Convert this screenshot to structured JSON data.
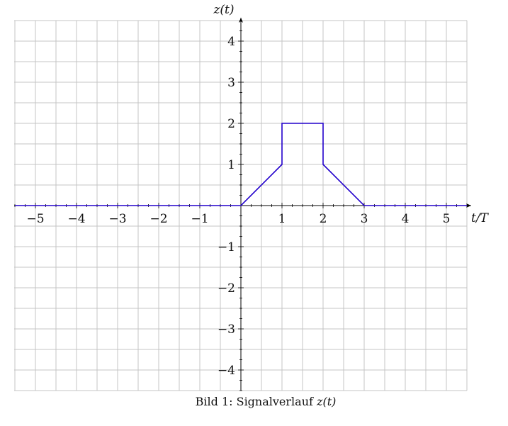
{
  "chart_data": {
    "type": "line",
    "xlabel": "t/T",
    "ylabel": "z(t)",
    "xlim": [
      -5.5,
      5.5
    ],
    "ylim": [
      -4.5,
      4.5
    ],
    "grid": true,
    "xticks": [
      -5,
      -4,
      -3,
      -2,
      -1,
      1,
      2,
      3,
      4,
      5
    ],
    "yticks": [
      -4,
      -3,
      -2,
      -1,
      1,
      2,
      3,
      4
    ],
    "xtick_labels": [
      "−5",
      "−4",
      "−3",
      "−2",
      "−1",
      "1",
      "2",
      "3",
      "4",
      "5"
    ],
    "ytick_labels": [
      "−4",
      "−3",
      "−2",
      "−1",
      "1",
      "2",
      "3",
      "4"
    ],
    "line_color": "#2200cc",
    "series": [
      {
        "x": [
          -5.5,
          0,
          1,
          1,
          2,
          2,
          3,
          5.5
        ],
        "y": [
          0,
          0,
          1,
          2,
          2,
          1,
          0,
          0
        ]
      }
    ]
  },
  "caption": {
    "prefix": "Bild 1: Signalverlauf ",
    "math": "z(t)"
  }
}
